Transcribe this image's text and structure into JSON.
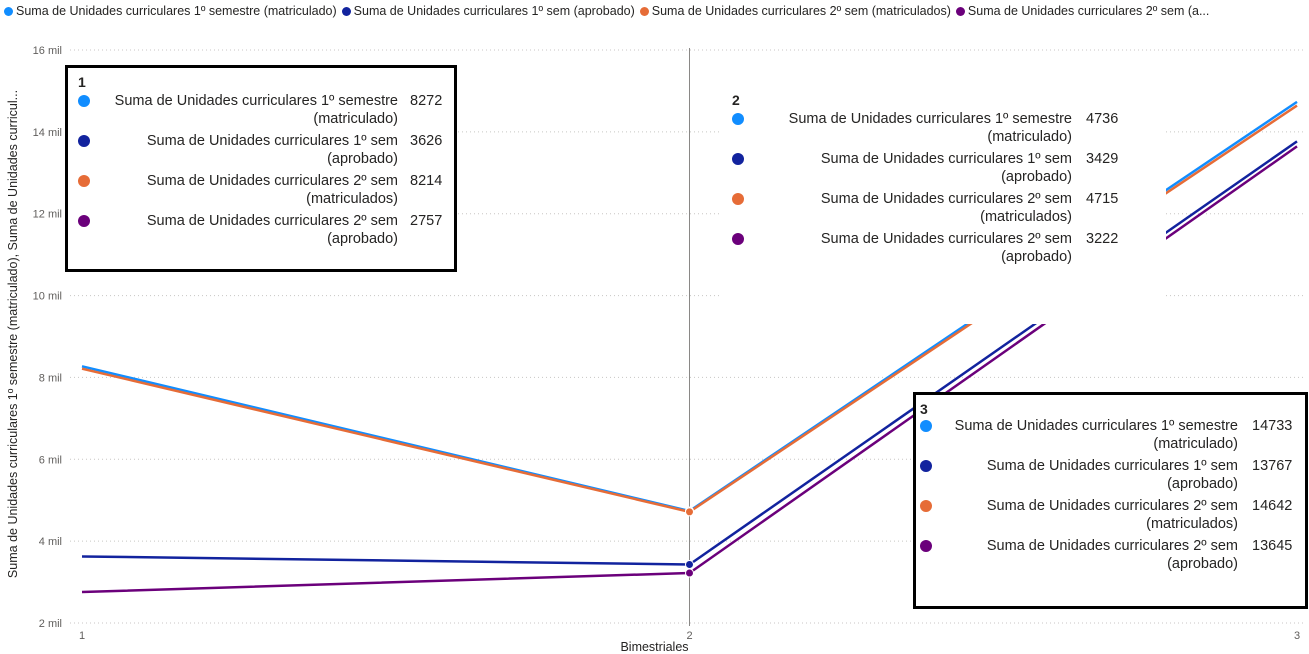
{
  "legend": [
    {
      "label": "Suma de Unidades curriculares 1º semestre (matriculado)",
      "color": "#118DFF"
    },
    {
      "label": "Suma de Unidades curriculares 1º sem (aprobado)",
      "color": "#12239E"
    },
    {
      "label": "Suma de Unidades curriculares 2º sem (matriculados)",
      "color": "#E66C37"
    },
    {
      "label": "Suma de Unidades curriculares 2º sem (a...",
      "color": "#6B007B"
    }
  ],
  "chart_data": {
    "type": "line",
    "x": [
      1,
      2,
      3
    ],
    "ylim": [
      2000,
      16000
    ],
    "yticks": [
      "2 mil",
      "4 mil",
      "6 mil",
      "8 mil",
      "10 mil",
      "12 mil",
      "14 mil",
      "16 mil"
    ],
    "xticks": [
      "1",
      "2",
      "3"
    ],
    "ylabel": "Suma de Unidades curriculares 1º semestre (matriculado), Suma de Unidades curricul...",
    "xlabel": "Bimestriales",
    "grid": true,
    "series": [
      {
        "name": "Suma de Unidades curriculares 1º semestre (matriculado)",
        "color": "#118DFF",
        "values": [
          8272,
          4736,
          14733
        ]
      },
      {
        "name": "Suma de Unidades curriculares 1º sem (aprobado)",
        "color": "#12239E",
        "values": [
          3626,
          3429,
          13767
        ]
      },
      {
        "name": "Suma de Unidades curriculares 2º sem (matriculados)",
        "color": "#E66C37",
        "values": [
          8214,
          4715,
          14642
        ]
      },
      {
        "name": "Suma de Unidades curriculares 2º sem (aprobado)",
        "color": "#6B007B",
        "values": [
          2757,
          3222,
          13645
        ]
      }
    ]
  },
  "tooltips": [
    {
      "title": "1",
      "rows": [
        {
          "label": "Suma de Unidades curriculares 1º semestre (matriculado)",
          "value": "8272",
          "color": "#118DFF"
        },
        {
          "label": "Suma de Unidades curriculares 1º sem (aprobado)",
          "value": "3626",
          "color": "#12239E"
        },
        {
          "label": "Suma de Unidades curriculares 2º sem (matriculados)",
          "value": "8214",
          "color": "#E66C37"
        },
        {
          "label": "Suma de Unidades curriculares 2º sem (aprobado)",
          "value": "2757",
          "color": "#6B007B"
        }
      ]
    },
    {
      "title": "2",
      "rows": [
        {
          "label": "Suma de Unidades curriculares 1º semestre (matriculado)",
          "value": "4736",
          "color": "#118DFF"
        },
        {
          "label": "Suma de Unidades curriculares 1º sem (aprobado)",
          "value": "3429",
          "color": "#12239E"
        },
        {
          "label": "Suma de Unidades curriculares 2º sem (matriculados)",
          "value": "4715",
          "color": "#E66C37"
        },
        {
          "label": "Suma de Unidades curriculares 2º sem (aprobado)",
          "value": "3222",
          "color": "#6B007B"
        }
      ]
    },
    {
      "title": "3",
      "rows": [
        {
          "label": "Suma de Unidades curriculares 1º semestre (matriculado)",
          "value": "14733",
          "color": "#118DFF"
        },
        {
          "label": "Suma de Unidades curriculares 1º sem (aprobado)",
          "value": "13767",
          "color": "#12239E"
        },
        {
          "label": "Suma de Unidades curriculares 2º sem (matriculados)",
          "value": "14642",
          "color": "#E66C37"
        },
        {
          "label": "Suma de Unidades curriculares 2º sem (aprobado)",
          "value": "13645",
          "color": "#6B007B"
        }
      ]
    }
  ]
}
